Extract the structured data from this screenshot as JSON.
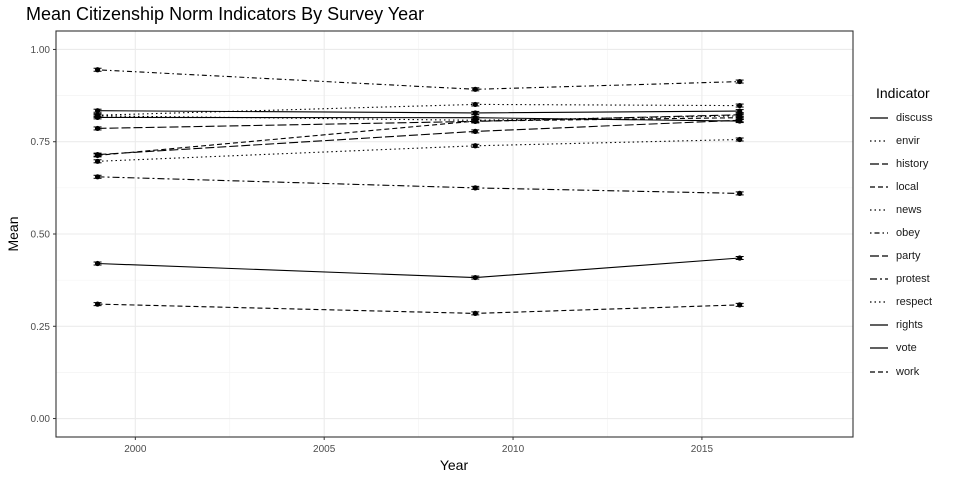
{
  "chart_data": {
    "type": "line",
    "title": "Mean Citizenship Norm Indicators By Survey Year",
    "xlabel": "Year",
    "ylabel": "Mean",
    "xlim": [
      1997.9,
      2019.0
    ],
    "ylim": [
      -0.05,
      1.05
    ],
    "x_ticks": [
      2000,
      2005,
      2010,
      2015
    ],
    "x_tick_labels": [
      "2000",
      "2005",
      "2010",
      "2015"
    ],
    "y_ticks": [
      0,
      0.25,
      0.5,
      0.75,
      1.0
    ],
    "y_tick_labels": [
      "0.00",
      "0.25",
      "0.50",
      "0.75",
      "1.00"
    ],
    "grid": true,
    "legend_title": "Indicator",
    "legend_position": "right",
    "x": [
      1999,
      2009,
      2016
    ],
    "series": [
      {
        "name": "discuss",
        "dash": "solid",
        "values": [
          0.834,
          0.828,
          0.833
        ]
      },
      {
        "name": "envir",
        "dash": "dotted",
        "values": [
          0.82,
          0.808,
          0.82
        ]
      },
      {
        "name": "history",
        "dash": "longdash",
        "values": [
          0.715,
          0.778,
          0.808
        ]
      },
      {
        "name": "local",
        "dash": "dashed",
        "values": [
          0.713,
          0.806,
          0.815
        ]
      },
      {
        "name": "news",
        "dash": "dotted",
        "values": [
          0.697,
          0.739,
          0.756
        ]
      },
      {
        "name": "obey",
        "dash": "dotdash",
        "values": [
          0.945,
          0.892,
          0.913
        ]
      },
      {
        "name": "party",
        "dash": "longdash",
        "values": [
          0.786,
          0.805,
          0.823
        ]
      },
      {
        "name": "protest",
        "dash": "twodash",
        "values": [
          0.655,
          0.625,
          0.61
        ]
      },
      {
        "name": "respect",
        "dash": "dotted",
        "values": [
          0.822,
          0.851,
          0.848
        ]
      },
      {
        "name": "rights",
        "dash": "solid",
        "values": [
          0.816,
          0.815,
          0.806
        ]
      },
      {
        "name": "vote",
        "dash": "solid",
        "values": [
          0.42,
          0.382,
          0.435
        ]
      },
      {
        "name": "work",
        "dash": "dashed",
        "values": [
          0.31,
          0.285,
          0.308
        ]
      }
    ]
  }
}
